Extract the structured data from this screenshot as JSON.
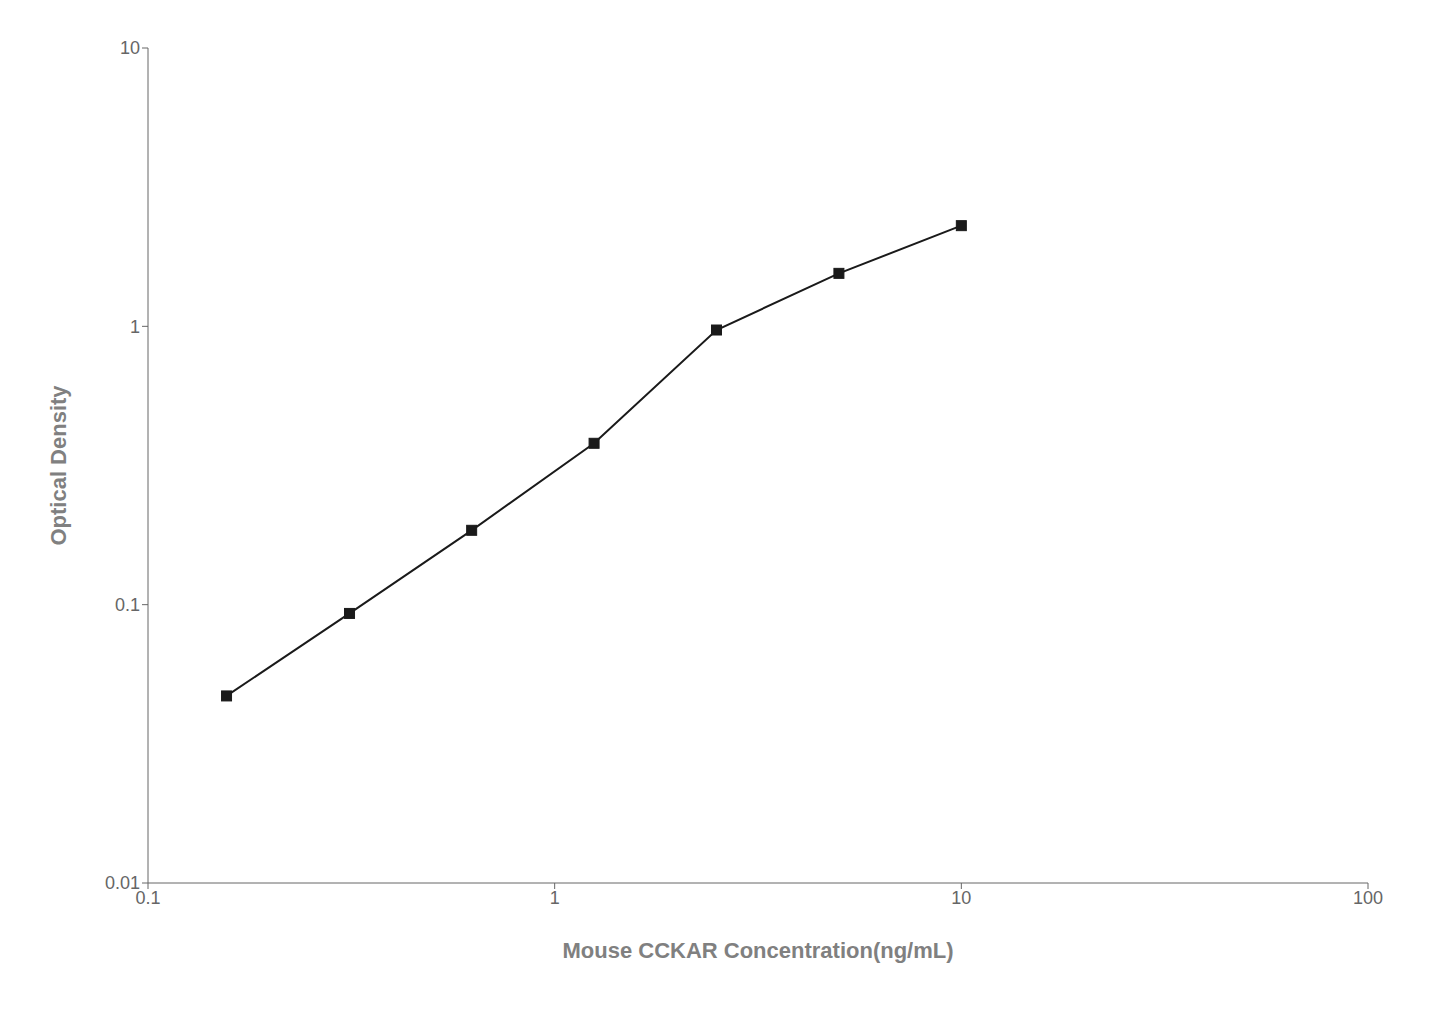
{
  "chart_data": {
    "type": "line",
    "x": [
      0.156,
      0.313,
      0.625,
      1.25,
      2.5,
      5.0,
      10.0
    ],
    "values": [
      0.047,
      0.093,
      0.185,
      0.38,
      0.97,
      1.55,
      2.3
    ],
    "color": "#1a1a1a",
    "marker": "square",
    "xlabel": "Mouse CCKAR Concentration(ng/mL)",
    "ylabel": "Optical Density",
    "xlim": [
      0.1,
      100
    ],
    "ylim": [
      0.01,
      10
    ],
    "xticks": [
      0.1,
      1,
      10,
      100
    ],
    "yticks": [
      0.01,
      0.1,
      1,
      10
    ],
    "log": true,
    "grid": false
  }
}
